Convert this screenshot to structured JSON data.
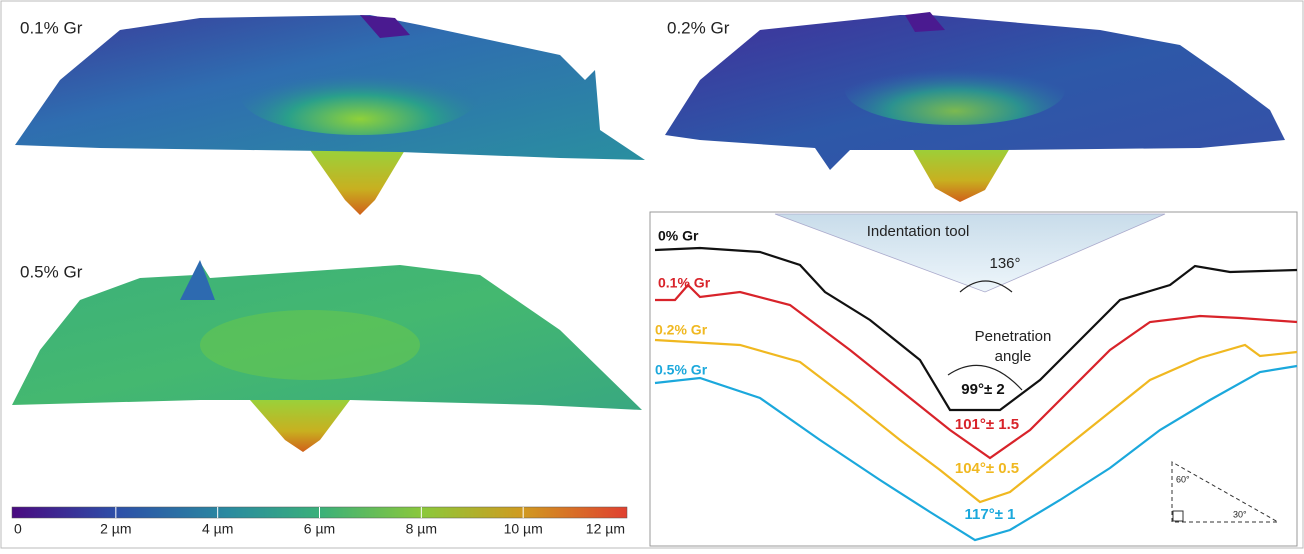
{
  "panels": [
    {
      "label": "0.1% Gr"
    },
    {
      "label": "0.2% Gr"
    },
    {
      "label": "0.5% Gr"
    }
  ],
  "colorbar": {
    "ticks": [
      "0",
      "2 µm",
      "4 µm",
      "6 µm",
      "8 µm",
      "10 µm",
      "12 µm"
    ]
  },
  "profile": {
    "tool": "Indentation tool",
    "tool_angle": "136°",
    "curves": [
      {
        "name": "0% Gr",
        "angle": "99°± 2"
      },
      {
        "name": "0.1% Gr",
        "angle": "101°± 1.5"
      },
      {
        "name": "0.2% Gr",
        "angle": "104°± 0.5"
      },
      {
        "name": "0.5% Gr",
        "angle": "117°± 1"
      }
    ],
    "penetration": [
      "Penetration",
      "angle"
    ],
    "triangle": [
      "60°",
      "30°"
    ]
  }
}
